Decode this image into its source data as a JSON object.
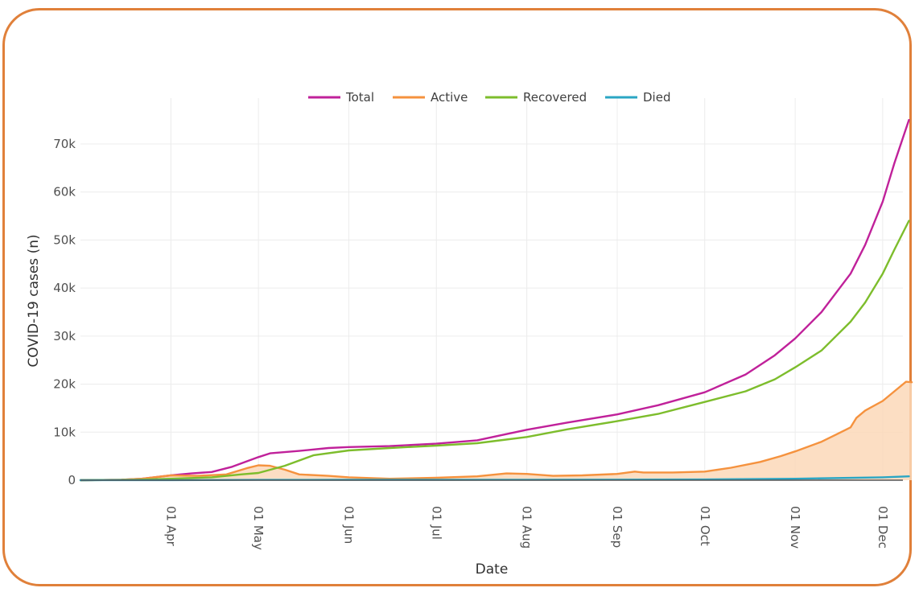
{
  "colors": {
    "frame": "#e0803a",
    "total": "#c0219a",
    "active": "#f5923e",
    "active_fill": "#fbd8b8",
    "recovered": "#7dbd2c",
    "died": "#2aa6c4",
    "grid": "#ececec"
  },
  "chart_data": {
    "type": "line",
    "xlabel": "Date",
    "ylabel": "COVID-19 cases (n)",
    "legend_position": "top-center",
    "grid": true,
    "x_range": [
      "2020-03-01",
      "2020-12-12"
    ],
    "ylim": [
      0,
      75000
    ],
    "x_ticks": [
      "01 Apr",
      "01 May",
      "01 Jun",
      "01 Jul",
      "01 Aug",
      "01 Sep",
      "01 Oct",
      "01 Nov",
      "01 Dec"
    ],
    "x_tick_dates": [
      "2020-04-01",
      "2020-05-01",
      "2020-06-01",
      "2020-07-01",
      "2020-08-01",
      "2020-09-01",
      "2020-10-01",
      "2020-11-01",
      "2020-12-01"
    ],
    "y_ticks": [
      "0",
      "10k",
      "20k",
      "30k",
      "40k",
      "50k",
      "60k",
      "70k"
    ],
    "y_tick_values": [
      0,
      10000,
      20000,
      30000,
      40000,
      50000,
      60000,
      70000
    ],
    "series": [
      {
        "name": "Total",
        "color_key": "total",
        "points": [
          [
            "2020-03-01",
            0
          ],
          [
            "2020-03-15",
            100
          ],
          [
            "2020-03-22",
            300
          ],
          [
            "2020-04-01",
            1000
          ],
          [
            "2020-04-08",
            1400
          ],
          [
            "2020-04-15",
            1700
          ],
          [
            "2020-04-22",
            2800
          ],
          [
            "2020-05-01",
            4800
          ],
          [
            "2020-05-05",
            5600
          ],
          [
            "2020-05-15",
            6100
          ],
          [
            "2020-05-25",
            6700
          ],
          [
            "2020-06-01",
            6900
          ],
          [
            "2020-06-15",
            7100
          ],
          [
            "2020-07-01",
            7600
          ],
          [
            "2020-07-15",
            8300
          ],
          [
            "2020-08-01",
            10500
          ],
          [
            "2020-08-15",
            12000
          ],
          [
            "2020-09-01",
            13700
          ],
          [
            "2020-09-15",
            15600
          ],
          [
            "2020-10-01",
            18300
          ],
          [
            "2020-10-15",
            22000
          ],
          [
            "2020-10-25",
            26000
          ],
          [
            "2020-11-01",
            29500
          ],
          [
            "2020-11-10",
            35000
          ],
          [
            "2020-11-20",
            43000
          ],
          [
            "2020-11-25",
            49000
          ],
          [
            "2020-12-01",
            58000
          ],
          [
            "2020-12-05",
            66000
          ],
          [
            "2020-12-10",
            75000
          ]
        ]
      },
      {
        "name": "Active",
        "color_key": "active",
        "fill": true,
        "points": [
          [
            "2020-03-01",
            0
          ],
          [
            "2020-03-15",
            100
          ],
          [
            "2020-03-22",
            300
          ],
          [
            "2020-04-01",
            1000
          ],
          [
            "2020-04-10",
            900
          ],
          [
            "2020-04-20",
            1200
          ],
          [
            "2020-04-27",
            2500
          ],
          [
            "2020-05-01",
            3100
          ],
          [
            "2020-05-05",
            3000
          ],
          [
            "2020-05-10",
            2200
          ],
          [
            "2020-05-15",
            1200
          ],
          [
            "2020-05-25",
            900
          ],
          [
            "2020-06-01",
            600
          ],
          [
            "2020-06-15",
            300
          ],
          [
            "2020-07-01",
            500
          ],
          [
            "2020-07-15",
            800
          ],
          [
            "2020-07-25",
            1400
          ],
          [
            "2020-08-01",
            1300
          ],
          [
            "2020-08-10",
            900
          ],
          [
            "2020-08-20",
            1000
          ],
          [
            "2020-09-01",
            1300
          ],
          [
            "2020-09-07",
            1800
          ],
          [
            "2020-09-10",
            1600
          ],
          [
            "2020-09-20",
            1600
          ],
          [
            "2020-10-01",
            1800
          ],
          [
            "2020-10-10",
            2600
          ],
          [
            "2020-10-20",
            3800
          ],
          [
            "2020-10-27",
            5000
          ],
          [
            "2020-11-01",
            6000
          ],
          [
            "2020-11-10",
            8000
          ],
          [
            "2020-11-15",
            9500
          ],
          [
            "2020-11-20",
            11000
          ],
          [
            "2020-11-22",
            13000
          ],
          [
            "2020-11-25",
            14500
          ],
          [
            "2020-12-01",
            16500
          ],
          [
            "2020-12-05",
            18500
          ],
          [
            "2020-12-09",
            20500
          ],
          [
            "2020-12-11",
            20400
          ]
        ]
      },
      {
        "name": "Recovered",
        "color_key": "recovered",
        "points": [
          [
            "2020-03-01",
            0
          ],
          [
            "2020-03-20",
            100
          ],
          [
            "2020-04-01",
            300
          ],
          [
            "2020-04-15",
            600
          ],
          [
            "2020-04-25",
            1200
          ],
          [
            "2020-05-01",
            1500
          ],
          [
            "2020-05-10",
            3000
          ],
          [
            "2020-05-20",
            5200
          ],
          [
            "2020-06-01",
            6200
          ],
          [
            "2020-06-15",
            6700
          ],
          [
            "2020-07-01",
            7200
          ],
          [
            "2020-07-15",
            7700
          ],
          [
            "2020-08-01",
            9000
          ],
          [
            "2020-08-15",
            10600
          ],
          [
            "2020-09-01",
            12300
          ],
          [
            "2020-09-15",
            13800
          ],
          [
            "2020-10-01",
            16300
          ],
          [
            "2020-10-15",
            18500
          ],
          [
            "2020-10-25",
            21000
          ],
          [
            "2020-11-01",
            23500
          ],
          [
            "2020-11-10",
            27000
          ],
          [
            "2020-11-20",
            33000
          ],
          [
            "2020-11-25",
            37000
          ],
          [
            "2020-12-01",
            43000
          ],
          [
            "2020-12-05",
            48000
          ],
          [
            "2020-12-10",
            54000
          ]
        ]
      },
      {
        "name": "Died",
        "color_key": "died",
        "points": [
          [
            "2020-03-01",
            0
          ],
          [
            "2020-04-01",
            20
          ],
          [
            "2020-05-01",
            60
          ],
          [
            "2020-06-01",
            80
          ],
          [
            "2020-07-01",
            90
          ],
          [
            "2020-08-01",
            100
          ],
          [
            "2020-09-01",
            120
          ],
          [
            "2020-10-01",
            150
          ],
          [
            "2020-11-01",
            300
          ],
          [
            "2020-12-01",
            600
          ],
          [
            "2020-12-10",
            800
          ]
        ]
      }
    ]
  }
}
